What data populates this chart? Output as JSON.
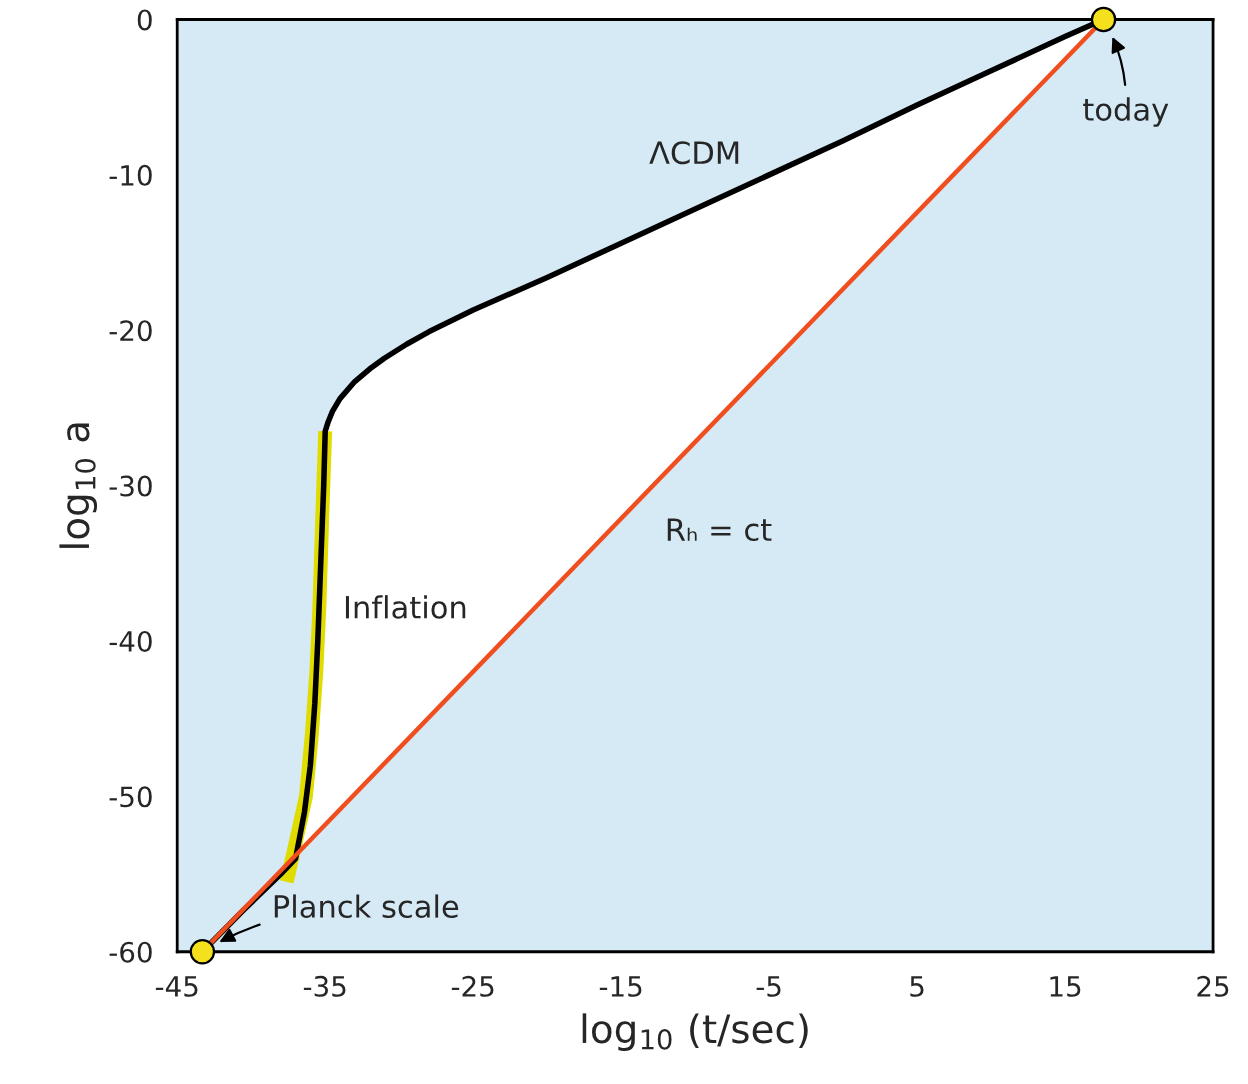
{
  "chart_data": {
    "type": "line",
    "xlabel": "log$_{10}$ (t/sec)",
    "ylabel": "log$_{10}$ a",
    "xlim": [
      -45,
      25
    ],
    "xticks": [
      -45,
      -35,
      -25,
      -15,
      -5,
      5,
      15,
      25
    ],
    "ylim": [
      -60,
      0
    ],
    "yticks": [
      -60,
      -50,
      -40,
      -30,
      -20,
      -10,
      0
    ],
    "grid": false,
    "series": [
      {
        "name": "Inflation",
        "color": "#e0dc00",
        "x": [
          -37.6,
          -37.0,
          -36.3,
          -35.9,
          -35.6,
          -35.4,
          -35.2,
          -35.0
        ],
        "values": [
          -55.5,
          -53.0,
          -50.0,
          -46.0,
          -42.0,
          -38.0,
          -32.0,
          -26.5
        ]
      },
      {
        "name": "ΛCDM",
        "color": "#000000",
        "x": [
          -43.3,
          -40.5,
          -38.0,
          -37.0,
          -36.4,
          -36.0,
          -35.7,
          -35.5,
          -35.3,
          -35.1,
          -35.0,
          -34.8,
          -34.5,
          -34.0,
          -33.0,
          -32.0,
          -31.0,
          -29.5,
          -28.0,
          -25.0,
          -20.0,
          -15.0,
          -10.0,
          -5.0,
          0.0,
          5.0,
          10.0,
          15.0,
          17.6
        ],
        "values": [
          -60.0,
          -57.3,
          -55.0,
          -54.0,
          -51.0,
          -48.0,
          -44.0,
          -40.0,
          -35.0,
          -30.0,
          -26.5,
          -25.9,
          -25.2,
          -24.4,
          -23.3,
          -22.5,
          -21.8,
          -20.9,
          -20.1,
          -18.7,
          -16.6,
          -14.4,
          -12.2,
          -10.0,
          -7.8,
          -5.5,
          -3.3,
          -1.1,
          0.0
        ]
      },
      {
        "name": "Rₕ = ct",
        "color": "#f04e1e",
        "x": [
          -43.3,
          17.6
        ],
        "values": [
          -60.0,
          0.0
        ]
      },
      {
        "type": "scatter",
        "color": "#f5e01e",
        "x": [
          -43.3,
          17.6
        ],
        "values": [
          -60.0,
          0.0
        ]
      }
    ],
    "annotations": [
      {
        "text": "Planck scale",
        "x": -43.3,
        "y": -60
      },
      {
        "text": "today",
        "x": 17.6,
        "y": 0
      }
    ]
  }
}
